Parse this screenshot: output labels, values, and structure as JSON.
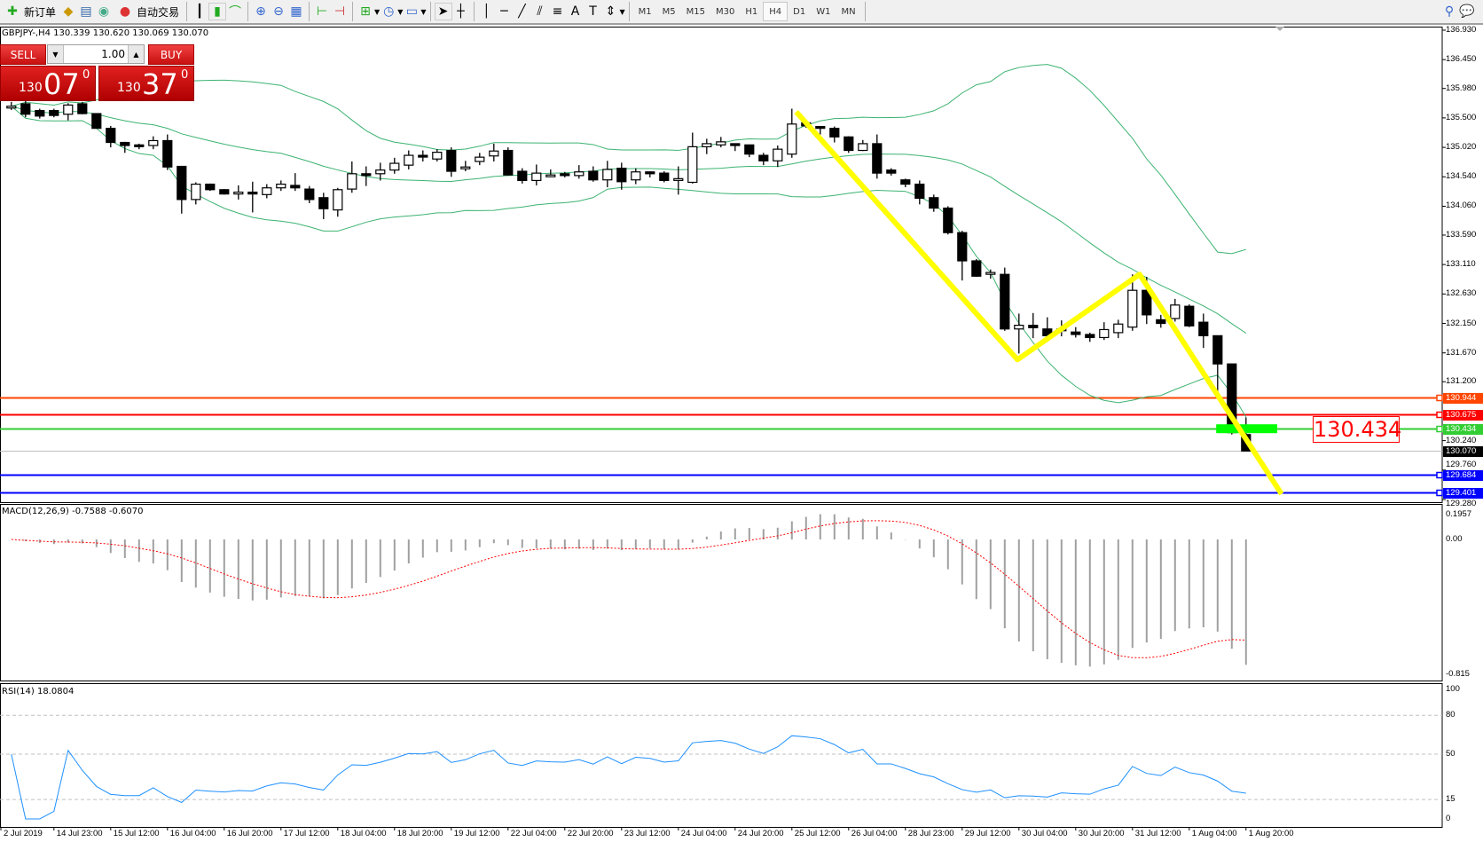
{
  "toolbar": {
    "new_order": "新订单",
    "auto_trading": "自动交易",
    "icons": [
      "new-order-icon",
      "history-icon",
      "market-watch-icon",
      "signals-icon",
      "auto-trading-icon",
      "bar-chart-icon",
      "candlestick-icon",
      "line-chart-icon",
      "zoom-in-icon",
      "zoom-out-icon",
      "tile-windows-icon",
      "chart-shift-icon",
      "autoscroll-icon",
      "indicators-icon",
      "periods-icon",
      "templates-icon",
      "cursor-icon",
      "crosshair-icon",
      "vertical-line-icon",
      "horizontal-line-icon",
      "trendline-icon",
      "equidistant-channel-icon",
      "fibonacci-icon",
      "text-icon",
      "text-label-icon",
      "arrows-icon",
      "search-icon",
      "chat-icon"
    ],
    "timeframes": [
      "M1",
      "M5",
      "M15",
      "M30",
      "H1",
      "H4",
      "D1",
      "W1",
      "MN"
    ],
    "active_timeframe": "H4"
  },
  "chart": {
    "symbol_line": "GBPJPY-,H4  130.339 130.620 130.069 130.070",
    "trade_panel": {
      "sell": "SELL",
      "buy": "BUY",
      "lot": "1.00",
      "bid_small": "130",
      "bid_big": "07",
      "bid_pip": "0",
      "ask_small": "130",
      "ask_big": "37",
      "ask_pip": "0"
    },
    "big_price_label": "130.434"
  },
  "chart_data": {
    "type": "candlestick",
    "symbol": "GBPJPY-",
    "timeframe": "H4",
    "ylim": [
      129.28,
      136.93
    ],
    "price_ticks": [
      "136.930",
      "136.450",
      "135.980",
      "135.500",
      "135.020",
      "134.540",
      "134.060",
      "133.590",
      "133.110",
      "132.630",
      "132.150",
      "131.670",
      "131.200",
      "130.240",
      "129.760",
      "129.280"
    ],
    "time_labels": [
      "2 Jul 2019",
      "14 Jul 23:00",
      "15 Jul 12:00",
      "16 Jul 04:00",
      "16 Jul 20:00",
      "17 Jul 12:00",
      "18 Jul 04:00",
      "18 Jul 20:00",
      "19 Jul 12:00",
      "22 Jul 04:00",
      "22 Jul 20:00",
      "23 Jul 12:00",
      "24 Jul 04:00",
      "24 Jul 20:00",
      "25 Jul 12:00",
      "26 Jul 04:00",
      "28 Jul 23:00",
      "29 Jul 12:00",
      "30 Jul 04:00",
      "30 Jul 20:00",
      "31 Jul 12:00",
      "1 Aug 04:00",
      "1 Aug 20:00"
    ],
    "ohlc": [
      [
        135.69,
        135.76,
        135.63,
        135.69
      ],
      [
        135.73,
        135.79,
        135.51,
        135.56
      ],
      [
        135.62,
        135.65,
        135.49,
        135.53
      ],
      [
        135.62,
        135.65,
        135.51,
        135.54
      ],
      [
        135.56,
        135.74,
        135.46,
        135.71
      ],
      [
        135.73,
        135.76,
        135.56,
        135.57
      ],
      [
        135.57,
        135.57,
        135.33,
        135.33
      ],
      [
        135.33,
        135.37,
        135.02,
        135.1
      ],
      [
        135.1,
        135.11,
        134.93,
        135.05
      ],
      [
        135.06,
        135.08,
        134.99,
        135.05
      ],
      [
        135.05,
        135.2,
        134.99,
        135.13
      ],
      [
        135.13,
        135.23,
        134.65,
        134.7
      ],
      [
        134.71,
        134.71,
        133.94,
        134.17
      ],
      [
        134.17,
        134.45,
        134.09,
        134.42
      ],
      [
        134.42,
        134.43,
        134.31,
        134.33
      ],
      [
        134.33,
        134.34,
        134.25,
        134.26
      ],
      [
        134.26,
        134.4,
        134.17,
        134.29
      ],
      [
        134.29,
        134.46,
        133.96,
        134.26
      ],
      [
        134.25,
        134.42,
        134.19,
        134.36
      ],
      [
        134.36,
        134.48,
        134.31,
        134.42
      ],
      [
        134.4,
        134.6,
        134.31,
        134.36
      ],
      [
        134.34,
        134.39,
        134.11,
        134.17
      ],
      [
        134.2,
        134.28,
        133.85,
        134.02
      ],
      [
        134.0,
        134.36,
        133.89,
        134.33
      ],
      [
        134.34,
        134.79,
        134.28,
        134.59
      ],
      [
        134.59,
        134.71,
        134.39,
        134.57
      ],
      [
        134.59,
        134.77,
        134.48,
        134.65
      ],
      [
        134.65,
        134.85,
        134.59,
        134.76
      ],
      [
        134.73,
        134.97,
        134.66,
        134.89
      ],
      [
        134.89,
        134.97,
        134.79,
        134.88
      ],
      [
        134.83,
        134.99,
        134.79,
        134.94
      ],
      [
        134.97,
        135.02,
        134.54,
        134.63
      ],
      [
        134.7,
        134.8,
        134.63,
        134.7
      ],
      [
        134.79,
        134.93,
        134.73,
        134.86
      ],
      [
        134.88,
        135.08,
        134.79,
        134.96
      ],
      [
        134.97,
        135.02,
        134.56,
        134.57
      ],
      [
        134.63,
        134.68,
        134.43,
        134.48
      ],
      [
        134.48,
        134.74,
        134.4,
        134.6
      ],
      [
        134.57,
        134.66,
        134.56,
        134.57
      ],
      [
        134.59,
        134.62,
        134.53,
        134.56
      ],
      [
        134.56,
        134.73,
        134.51,
        134.62
      ],
      [
        134.63,
        134.71,
        134.46,
        134.49
      ],
      [
        134.49,
        134.8,
        134.37,
        134.66
      ],
      [
        134.68,
        134.77,
        134.33,
        134.46
      ],
      [
        134.49,
        134.68,
        134.42,
        134.62
      ],
      [
        134.62,
        134.63,
        134.53,
        134.59
      ],
      [
        134.6,
        134.63,
        134.45,
        134.48
      ],
      [
        134.51,
        134.71,
        134.25,
        134.51
      ],
      [
        134.45,
        135.26,
        134.43,
        135.03
      ],
      [
        135.03,
        135.16,
        134.91,
        135.08
      ],
      [
        135.06,
        135.19,
        135.02,
        135.11
      ],
      [
        135.08,
        135.08,
        134.96,
        135.05
      ],
      [
        135.06,
        135.06,
        134.86,
        134.91
      ],
      [
        134.89,
        134.93,
        134.73,
        134.8
      ],
      [
        134.8,
        135.05,
        134.7,
        134.99
      ],
      [
        134.91,
        135.65,
        134.85,
        135.4
      ],
      [
        135.42,
        135.45,
        135.34,
        135.37
      ],
      [
        135.36,
        135.36,
        135.23,
        135.33
      ],
      [
        135.33,
        135.36,
        135.1,
        135.19
      ],
      [
        135.19,
        135.2,
        134.93,
        134.97
      ],
      [
        134.97,
        135.14,
        134.96,
        135.08
      ],
      [
        135.08,
        135.23,
        134.51,
        134.6
      ],
      [
        134.65,
        134.68,
        134.56,
        134.6
      ],
      [
        134.49,
        134.51,
        134.37,
        134.42
      ],
      [
        134.42,
        134.48,
        134.09,
        134.19
      ],
      [
        134.2,
        134.25,
        133.97,
        134.03
      ],
      [
        134.03,
        134.06,
        133.6,
        133.63
      ],
      [
        133.63,
        133.66,
        132.85,
        133.17
      ],
      [
        133.17,
        133.2,
        132.91,
        132.92
      ],
      [
        132.98,
        133.03,
        132.88,
        132.98
      ],
      [
        132.95,
        133.06,
        132.03,
        132.06
      ],
      [
        132.06,
        132.31,
        131.66,
        132.12
      ],
      [
        132.12,
        132.32,
        131.91,
        132.08
      ],
      [
        132.06,
        132.25,
        131.85,
        131.95
      ],
      [
        132.05,
        132.2,
        131.94,
        132.06
      ],
      [
        132.01,
        132.09,
        131.92,
        131.97
      ],
      [
        131.97,
        132.0,
        131.85,
        131.92
      ],
      [
        131.92,
        132.17,
        131.88,
        132.05
      ],
      [
        132.0,
        132.21,
        131.91,
        132.14
      ],
      [
        132.09,
        132.95,
        132.03,
        132.69
      ],
      [
        132.69,
        132.91,
        132.14,
        132.29
      ],
      [
        132.21,
        132.29,
        132.08,
        132.15
      ],
      [
        132.23,
        132.55,
        132.18,
        132.45
      ],
      [
        132.43,
        132.46,
        132.09,
        132.11
      ],
      [
        132.17,
        132.31,
        131.75,
        131.95
      ],
      [
        131.95,
        131.95,
        130.95,
        131.49
      ],
      [
        131.49,
        131.49,
        130.34,
        130.37
      ],
      [
        130.339,
        130.62,
        130.069,
        130.07
      ]
    ],
    "horizontal_lines": [
      {
        "price": "130.944",
        "color": "#ff4500"
      },
      {
        "price": "130.675",
        "color": "#ff0000"
      },
      {
        "price": "130.434",
        "color": "#32cd32"
      },
      {
        "price": "130.070",
        "color": "#000000",
        "line": "#c0c0c0"
      },
      {
        "price": "129.684",
        "color": "#0000ff"
      },
      {
        "price": "129.401",
        "color": "#0000ff"
      }
    ],
    "zigzag": [
      {
        "bar": 55.3,
        "price": 135.6
      },
      {
        "bar": 70.9,
        "price": 131.56
      },
      {
        "bar": 79.5,
        "price": 132.95
      },
      {
        "bar": 89.5,
        "price": 129.37
      }
    ],
    "zigzag_color": "#ffff00",
    "marker": {
      "bar_from": 84.9,
      "bar_to": 89.2,
      "price": 130.434,
      "color": "#00ff00"
    },
    "bollinger": {
      "period": 20,
      "deviation": 2,
      "color": "#3cb371"
    },
    "macd": {
      "label": "MACD(12,26,9) -0.7588 -0.6070",
      "ticks": [
        "0.1957",
        "0.00",
        "-0.815"
      ],
      "ylim": [
        -0.815,
        0.1957
      ],
      "hist_color": "#a0a0a0",
      "signal_color": "#ff0000"
    },
    "rsi": {
      "label": "RSI(14) 18.0804",
      "ticks": [
        "100",
        "80",
        "50",
        "15",
        "0"
      ],
      "levels": [
        80,
        50,
        15
      ],
      "color": "#1e90ff"
    }
  }
}
